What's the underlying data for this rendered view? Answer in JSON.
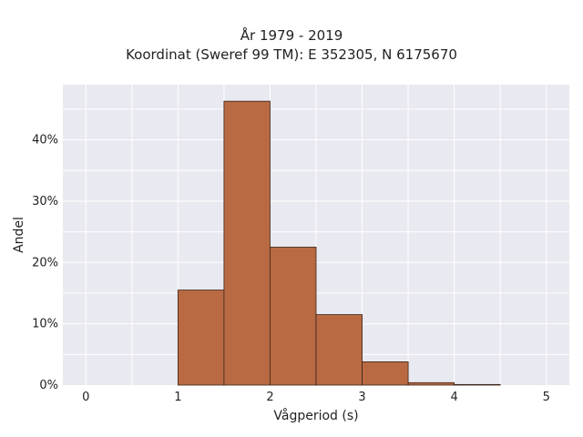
{
  "chart_data": {
    "type": "bar",
    "title": "År 1979 - 2019",
    "subtitle": "Koordinat (Sweref 99 TM): E 352305, N 6175670",
    "xlabel": "Vågperiod (s)",
    "ylabel": "Andel",
    "xlim": [
      -0.25,
      5.25
    ],
    "ylim": [
      0,
      0.49
    ],
    "xticks": [
      0,
      1,
      2,
      3,
      4,
      5
    ],
    "xtick_labels": [
      "0",
      "1",
      "2",
      "3",
      "4",
      "5"
    ],
    "yticks": [
      0,
      0.1,
      0.2,
      0.3,
      0.4
    ],
    "ytick_labels": [
      "0%",
      "10%",
      "20%",
      "30%",
      "40%"
    ],
    "bin_width": 0.5,
    "bins": [
      {
        "start": 1.0,
        "end": 1.5,
        "value": 0.155
      },
      {
        "start": 1.5,
        "end": 2.0,
        "value": 0.463
      },
      {
        "start": 2.0,
        "end": 2.5,
        "value": 0.225
      },
      {
        "start": 2.5,
        "end": 3.0,
        "value": 0.115
      },
      {
        "start": 3.0,
        "end": 3.5,
        "value": 0.038
      },
      {
        "start": 3.5,
        "end": 4.0,
        "value": 0.004
      },
      {
        "start": 4.0,
        "end": 4.5,
        "value": 0.001
      }
    ],
    "grid": true,
    "colors": {
      "bar_fill": "#b96a42",
      "bar_edge": "#3a2418",
      "plot_bg": "#e9e9f1",
      "grid": "#ffffff"
    }
  }
}
